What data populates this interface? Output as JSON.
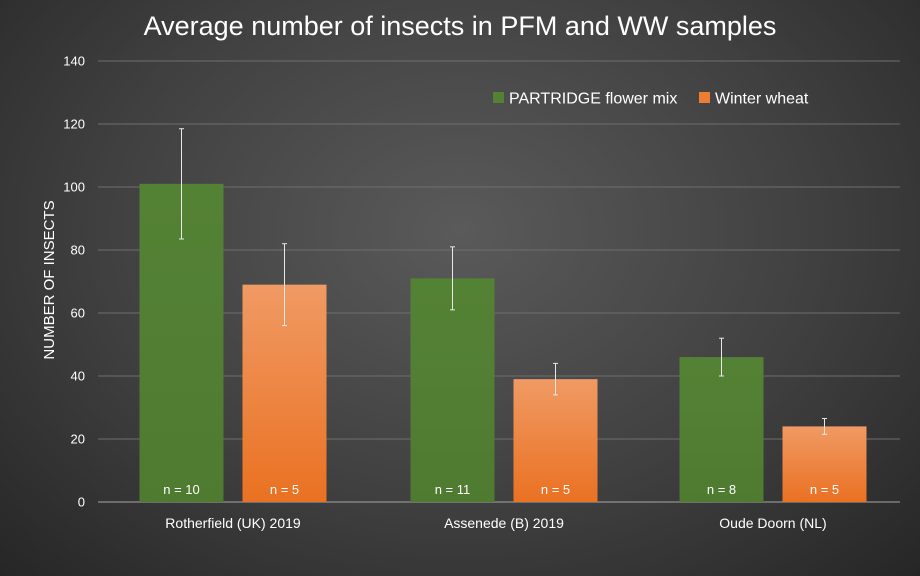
{
  "chart_data": {
    "type": "bar",
    "title": "Average number of insects in PFM and WW samples",
    "ylabel": "NUMBER OF INSECTS",
    "xlabel": "",
    "ylim": [
      0,
      140
    ],
    "yticks": [
      0,
      20,
      40,
      60,
      80,
      100,
      120,
      140
    ],
    "grid": true,
    "legend_position": "top-right",
    "categories": [
      "Rotherfield (UK) 2019",
      "Assenede (B) 2019",
      "Oude Doorn (NL)"
    ],
    "series": [
      {
        "name": "PARTRIDGE flower mix",
        "color": "#548235",
        "values": [
          101,
          71,
          46
        ],
        "error": [
          17.5,
          10,
          6
        ],
        "n_labels": [
          "n = 10",
          "n = 11",
          "n = 8"
        ]
      },
      {
        "name": "Winter wheat",
        "color": "#ed7d31",
        "values": [
          69,
          39,
          24
        ],
        "error": [
          13,
          5,
          2.5
        ],
        "n_labels": [
          "n = 5",
          "n = 5",
          "n = 5"
        ]
      }
    ]
  }
}
